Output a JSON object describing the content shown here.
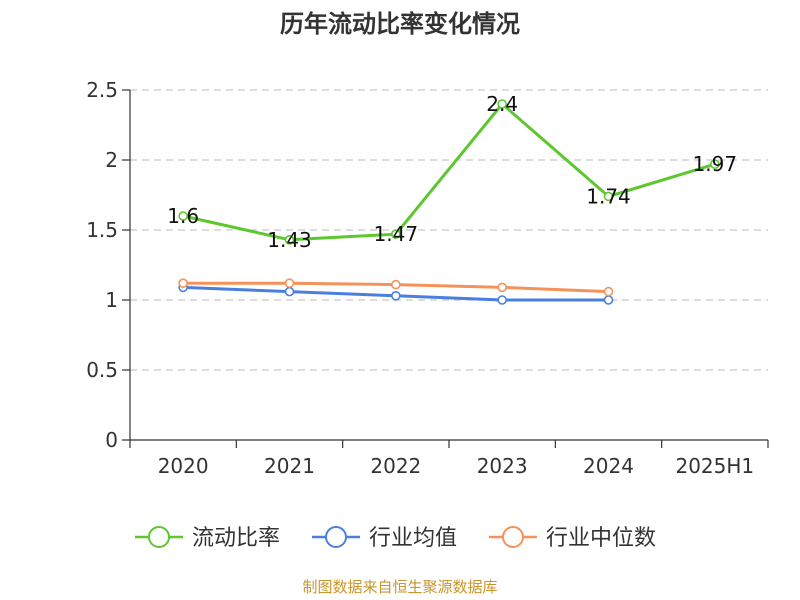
{
  "chart_data": {
    "type": "line",
    "title": "历年流动比率变化情况",
    "categories": [
      "2020",
      "2021",
      "2022",
      "2023",
      "2024",
      "2025H1"
    ],
    "ylim": [
      0,
      2.5
    ],
    "yticks": [
      "0",
      "0.5",
      "1",
      "1.5",
      "2",
      "2.5"
    ],
    "grid": true,
    "legend_position": "bottom",
    "series": [
      {
        "name": "流动比率",
        "color": "#5cc72e",
        "values": [
          1.6,
          1.43,
          1.47,
          2.4,
          1.74,
          1.97
        ],
        "labels": [
          "1.6",
          "1.43",
          "1.47",
          "2.4",
          "1.74",
          "1.97"
        ]
      },
      {
        "name": "行业均值",
        "color": "#4a7fe0",
        "values": [
          1.09,
          1.06,
          1.03,
          1.0,
          1.0,
          null
        ]
      },
      {
        "name": "行业中位数",
        "color": "#f5925a",
        "values": [
          1.12,
          1.12,
          1.11,
          1.09,
          1.06,
          null
        ]
      }
    ],
    "source": "制图数据来自恒生聚源数据库"
  }
}
